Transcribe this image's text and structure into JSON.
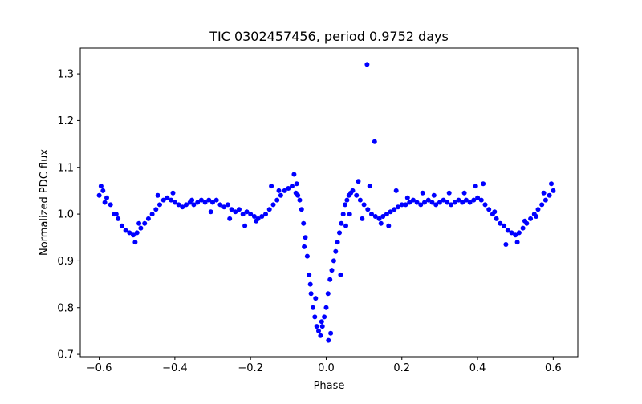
{
  "chart_data": {
    "type": "scatter",
    "title": "TIC 0302457456, period 0.9752 days",
    "xlabel": "Phase",
    "ylabel": "Normalized PDC flux",
    "xlim": [
      -0.65,
      0.665
    ],
    "ylim": [
      0.695,
      1.355
    ],
    "xticks": [
      -0.6,
      -0.4,
      -0.2,
      0.0,
      0.2,
      0.4,
      0.6
    ],
    "xtick_labels": [
      "−0.6",
      "−0.4",
      "−0.2",
      "0.0",
      "0.2",
      "0.4",
      "0.6"
    ],
    "yticks": [
      0.7,
      0.8,
      0.9,
      1.0,
      1.1,
      1.2,
      1.3
    ],
    "ytick_labels": [
      "0.7",
      "0.8",
      "0.9",
      "1.0",
      "1.1",
      "1.2",
      "1.3"
    ],
    "grid": false,
    "marker_color": "#0000ff",
    "series": [
      {
        "x": [
          -0.6,
          -0.59,
          -0.58,
          -0.57,
          -0.56,
          -0.55,
          -0.54,
          -0.53,
          -0.52,
          -0.51,
          -0.5,
          -0.49,
          -0.48,
          -0.47,
          -0.46,
          -0.45,
          -0.44,
          -0.43,
          -0.42,
          -0.41,
          -0.4,
          -0.39,
          -0.38,
          -0.37,
          -0.36,
          -0.35,
          -0.34,
          -0.33,
          -0.32,
          -0.31,
          -0.3,
          -0.29,
          -0.28,
          -0.27,
          -0.26,
          -0.25,
          -0.24,
          -0.23,
          -0.22,
          -0.21,
          -0.2,
          -0.19,
          -0.18,
          -0.17,
          -0.16,
          -0.15,
          -0.14,
          -0.13,
          -0.12,
          -0.11,
          -0.1,
          -0.09,
          -0.08,
          -0.075,
          -0.07,
          -0.065,
          -0.06,
          -0.055,
          -0.05,
          -0.045,
          -0.04,
          -0.035,
          -0.03,
          -0.025,
          -0.02,
          -0.015,
          -0.01,
          -0.005,
          0.0,
          0.005,
          0.01,
          0.015,
          0.02,
          0.025,
          0.03,
          0.035,
          0.04,
          0.045,
          0.05,
          0.055,
          0.06,
          0.065,
          0.07,
          0.08,
          0.09,
          0.1,
          0.11,
          0.12,
          0.13,
          0.14,
          0.15,
          0.16,
          0.17,
          0.18,
          0.19,
          0.2,
          0.21,
          0.22,
          0.23,
          0.24,
          0.25,
          0.26,
          0.27,
          0.28,
          0.29,
          0.3,
          0.31,
          0.32,
          0.33,
          0.34,
          0.35,
          0.36,
          0.37,
          0.38,
          0.39,
          0.4,
          0.41,
          0.42,
          0.43,
          0.44,
          0.45,
          0.46,
          0.47,
          0.48,
          0.49,
          0.5,
          0.51,
          0.52,
          0.53,
          0.54,
          0.55,
          0.56,
          0.57,
          0.58,
          0.59,
          0.6,
          -0.595,
          -0.585,
          -0.555,
          -0.505,
          -0.495,
          -0.445,
          -0.405,
          -0.355,
          -0.305,
          -0.255,
          -0.215,
          -0.185,
          -0.145,
          -0.125,
          -0.085,
          -0.078,
          -0.058,
          -0.042,
          -0.028,
          -0.012,
          0.006,
          0.012,
          0.038,
          0.052,
          0.062,
          0.085,
          0.095,
          0.115,
          0.145,
          0.165,
          0.185,
          0.215,
          0.255,
          0.285,
          0.325,
          0.365,
          0.395,
          0.415,
          0.445,
          0.475,
          0.505,
          0.525,
          0.555,
          0.575,
          0.595,
          0.108,
          0.128
        ],
        "y": [
          1.04,
          1.05,
          1.035,
          1.02,
          1.0,
          0.99,
          0.975,
          0.965,
          0.96,
          0.955,
          0.96,
          0.97,
          0.98,
          0.99,
          1.0,
          1.01,
          1.02,
          1.03,
          1.035,
          1.03,
          1.025,
          1.02,
          1.015,
          1.02,
          1.025,
          1.02,
          1.025,
          1.03,
          1.025,
          1.03,
          1.025,
          1.03,
          1.02,
          1.015,
          1.02,
          1.01,
          1.005,
          1.01,
          1.0,
          1.005,
          1.0,
          0.995,
          0.99,
          0.995,
          1.0,
          1.01,
          1.02,
          1.03,
          1.04,
          1.05,
          1.055,
          1.06,
          1.045,
          1.04,
          1.03,
          1.01,
          0.98,
          0.95,
          0.91,
          0.87,
          0.83,
          0.8,
          0.78,
          0.76,
          0.75,
          0.74,
          0.76,
          0.78,
          0.8,
          0.83,
          0.86,
          0.88,
          0.9,
          0.92,
          0.94,
          0.96,
          0.98,
          1.0,
          1.02,
          1.03,
          1.04,
          1.045,
          1.05,
          1.04,
          1.03,
          1.02,
          1.01,
          1.0,
          0.995,
          0.99,
          0.995,
          1.0,
          1.005,
          1.01,
          1.015,
          1.02,
          1.02,
          1.025,
          1.03,
          1.025,
          1.02,
          1.025,
          1.03,
          1.025,
          1.02,
          1.025,
          1.03,
          1.025,
          1.02,
          1.025,
          1.03,
          1.025,
          1.03,
          1.025,
          1.03,
          1.035,
          1.03,
          1.02,
          1.01,
          1.0,
          0.99,
          0.98,
          0.975,
          0.965,
          0.96,
          0.955,
          0.96,
          0.97,
          0.98,
          0.99,
          1.0,
          1.01,
          1.02,
          1.03,
          1.04,
          1.05,
          1.06,
          1.025,
          1.0,
          0.94,
          0.98,
          1.04,
          1.045,
          1.03,
          1.005,
          0.99,
          0.975,
          0.985,
          1.06,
          1.05,
          1.085,
          1.065,
          0.93,
          0.85,
          0.82,
          0.77,
          0.73,
          0.745,
          0.87,
          0.975,
          1.0,
          1.07,
          0.99,
          1.06,
          0.98,
          0.975,
          1.05,
          1.035,
          1.045,
          1.04,
          1.045,
          1.045,
          1.06,
          1.065,
          1.005,
          0.935,
          0.94,
          0.985,
          0.995,
          1.045,
          1.065,
          1.32,
          1.155
        ]
      }
    ]
  }
}
